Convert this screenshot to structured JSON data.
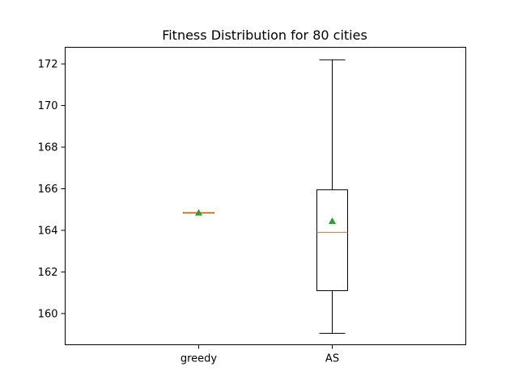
{
  "chart_data": {
    "type": "box",
    "title": "Fitness Distribution for 80 cities",
    "xlabel": "",
    "ylabel": "",
    "categories": [
      "greedy",
      "AS"
    ],
    "ylim": [
      158.5,
      172.8
    ],
    "yticks": [
      160,
      162,
      164,
      166,
      168,
      170,
      172
    ],
    "grid": false,
    "legend": "none",
    "colors": {
      "box": "#000000",
      "median": "#ff7f0e",
      "mean": "#2ca02c"
    },
    "boxes": [
      {
        "category": "greedy",
        "whisker_low": 164.85,
        "q1": 164.85,
        "median": 164.85,
        "q3": 164.85,
        "whisker_high": 164.85,
        "mean": 164.85
      },
      {
        "category": "AS",
        "whisker_low": 159.05,
        "q1": 161.1,
        "median": 163.9,
        "q3": 165.95,
        "whisker_high": 172.2,
        "mean": 164.45
      }
    ]
  }
}
